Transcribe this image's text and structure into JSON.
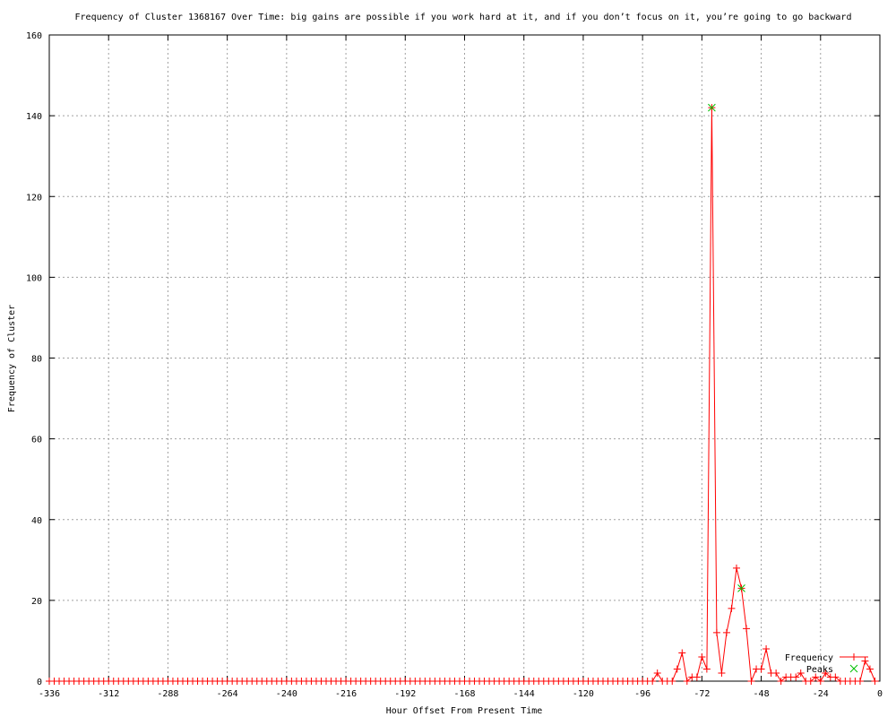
{
  "chart_data": {
    "type": "line",
    "title": "Frequency of Cluster 1368167 Over Time: big gains are possible if you work hard at it, and if you don’t focus on it, you’re going to go backward",
    "xlabel": "Hour Offset From Present Time",
    "ylabel": "Frequency of Cluster",
    "xlim": [
      -336,
      0
    ],
    "ylim": [
      0,
      160
    ],
    "xticks": [
      -336,
      -312,
      -288,
      -264,
      -240,
      -216,
      -192,
      -168,
      -144,
      -120,
      -96,
      -72,
      -48,
      -24,
      0
    ],
    "yticks": [
      0,
      20,
      40,
      60,
      80,
      100,
      120,
      140,
      160
    ],
    "grid": true,
    "legend_position": "bottom-right",
    "series": [
      {
        "name": "Frequency",
        "color": "#ff0000",
        "marker": "plus",
        "x": [
          -336,
          -334,
          -332,
          -330,
          -328,
          -326,
          -324,
          -322,
          -320,
          -318,
          -316,
          -314,
          -312,
          -310,
          -308,
          -306,
          -304,
          -302,
          -300,
          -298,
          -296,
          -294,
          -292,
          -290,
          -288,
          -286,
          -284,
          -282,
          -280,
          -278,
          -276,
          -274,
          -272,
          -270,
          -268,
          -266,
          -264,
          -262,
          -260,
          -258,
          -256,
          -254,
          -252,
          -250,
          -248,
          -246,
          -244,
          -242,
          -240,
          -238,
          -236,
          -234,
          -232,
          -230,
          -228,
          -226,
          -224,
          -222,
          -220,
          -218,
          -216,
          -214,
          -212,
          -210,
          -208,
          -206,
          -204,
          -202,
          -200,
          -198,
          -196,
          -194,
          -192,
          -190,
          -188,
          -186,
          -184,
          -182,
          -180,
          -178,
          -176,
          -174,
          -172,
          -170,
          -168,
          -166,
          -164,
          -162,
          -160,
          -158,
          -156,
          -154,
          -152,
          -150,
          -148,
          -146,
          -144,
          -142,
          -140,
          -138,
          -136,
          -134,
          -132,
          -130,
          -128,
          -126,
          -124,
          -122,
          -120,
          -118,
          -116,
          -114,
          -112,
          -110,
          -108,
          -106,
          -104,
          -102,
          -100,
          -98,
          -96,
          -94,
          -92,
          -90,
          -88,
          -86,
          -84,
          -82,
          -80,
          -78,
          -76,
          -74,
          -72,
          -70,
          -68,
          -66,
          -64,
          -62,
          -60,
          -58,
          -56,
          -54,
          -52,
          -50,
          -48,
          -46,
          -44,
          -42,
          -40,
          -38,
          -36,
          -34,
          -32,
          -30,
          -28,
          -26,
          -24,
          -22,
          -20,
          -18,
          -16,
          -14,
          -12,
          -10,
          -8,
          -6,
          -4,
          -2
        ],
        "y": [
          0,
          0,
          0,
          0,
          0,
          0,
          0,
          0,
          0,
          0,
          0,
          0,
          0,
          0,
          0,
          0,
          0,
          0,
          0,
          0,
          0,
          0,
          0,
          0,
          0,
          0,
          0,
          0,
          0,
          0,
          0,
          0,
          0,
          0,
          0,
          0,
          0,
          0,
          0,
          0,
          0,
          0,
          0,
          0,
          0,
          0,
          0,
          0,
          0,
          0,
          0,
          0,
          0,
          0,
          0,
          0,
          0,
          0,
          0,
          0,
          0,
          0,
          0,
          0,
          0,
          0,
          0,
          0,
          0,
          0,
          0,
          0,
          0,
          0,
          0,
          0,
          0,
          0,
          0,
          0,
          0,
          0,
          0,
          0,
          0,
          0,
          0,
          0,
          0,
          0,
          0,
          0,
          0,
          0,
          0,
          0,
          0,
          0,
          0,
          0,
          0,
          0,
          0,
          0,
          0,
          0,
          0,
          0,
          0,
          0,
          0,
          0,
          0,
          0,
          0,
          0,
          0,
          0,
          0,
          0,
          0,
          0,
          0,
          2,
          0,
          0,
          0,
          3,
          7,
          0,
          1,
          1,
          6,
          3,
          142,
          12,
          2,
          12,
          18,
          28,
          23,
          13,
          0,
          3,
          3,
          8,
          2,
          2,
          0,
          1,
          1,
          1,
          2,
          0,
          0,
          1,
          0,
          2,
          1,
          1,
          0,
          0,
          0,
          0,
          0,
          5,
          3,
          0
        ]
      },
      {
        "name": "Peaks",
        "color": "#00c000",
        "marker": "cross",
        "x": [
          -68,
          -56
        ],
        "y": [
          142,
          23
        ]
      }
    ]
  }
}
